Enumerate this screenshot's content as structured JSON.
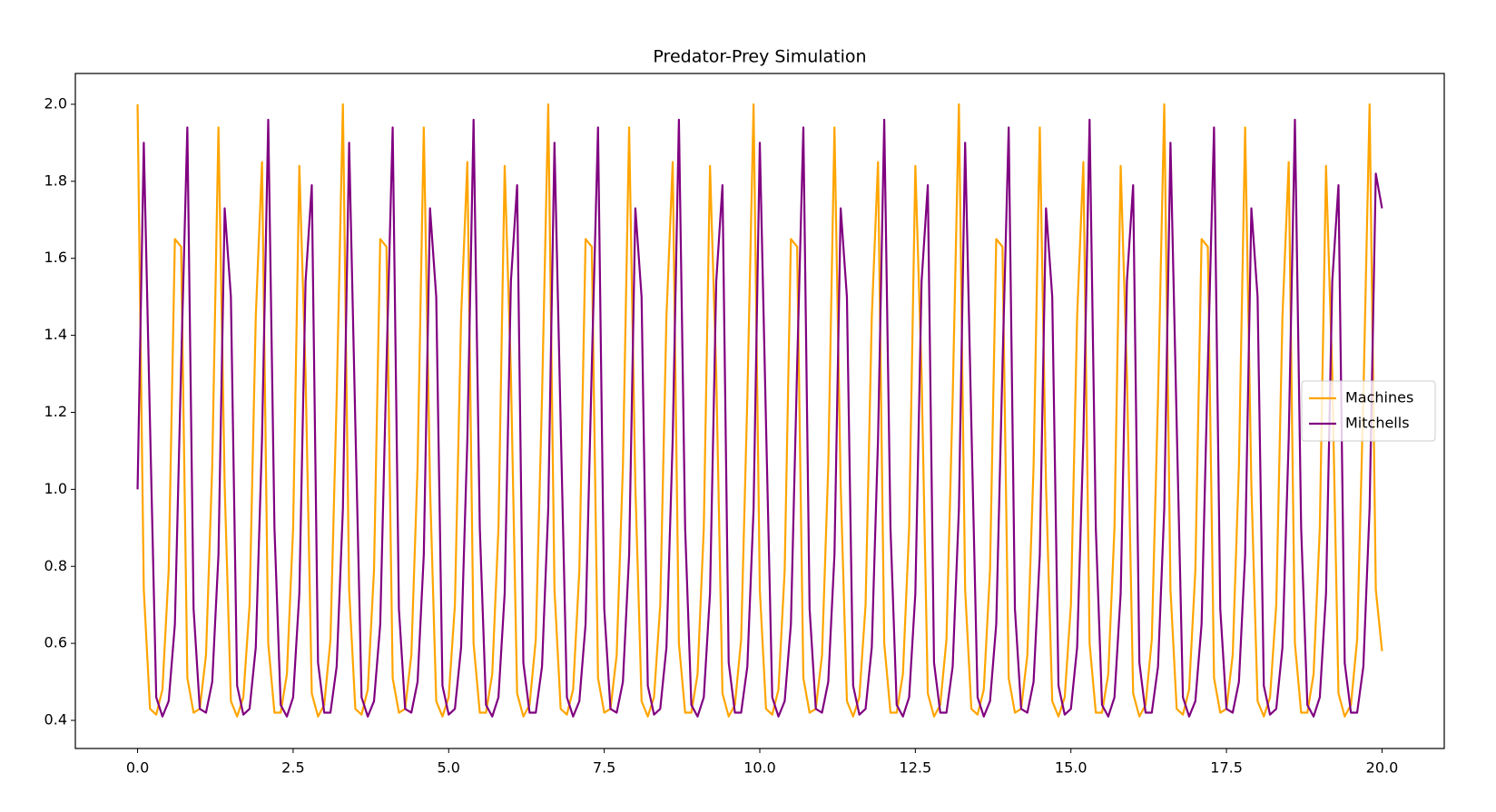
{
  "chart_data": {
    "type": "line",
    "title": "Predator-Prey Simulation",
    "x": [
      0,
      0.1,
      0.2,
      0.3,
      0.4,
      0.5,
      0.6,
      0.7,
      0.8,
      0.9,
      1,
      1.1,
      1.2,
      1.3,
      1.4,
      1.5,
      1.6,
      1.7,
      1.8,
      1.9,
      2,
      2.1,
      2.2,
      2.3,
      2.4,
      2.5,
      2.6,
      2.7,
      2.8,
      2.9,
      3,
      3.1,
      3.2,
      3.3,
      3.4,
      3.5,
      3.6,
      3.7,
      3.8,
      3.9,
      4,
      4.1,
      4.2,
      4.3,
      4.4,
      4.5,
      4.6,
      4.7,
      4.8,
      4.9,
      5,
      5.1,
      5.2,
      5.3,
      5.4,
      5.5,
      5.6,
      5.7,
      5.8,
      5.9,
      6,
      6.1,
      6.2,
      6.3,
      6.4,
      6.5,
      6.6,
      6.7,
      6.8,
      6.9,
      7,
      7.1,
      7.2,
      7.3,
      7.4,
      7.5,
      7.6,
      7.7,
      7.8,
      7.9,
      8,
      8.1,
      8.2,
      8.3,
      8.4,
      8.5,
      8.6,
      8.7,
      8.8,
      8.9,
      9,
      9.1,
      9.2,
      9.3,
      9.4,
      9.5,
      9.6,
      9.7,
      9.8,
      9.9,
      10,
      10.1,
      10.2,
      10.3,
      10.4,
      10.5,
      10.6,
      10.7,
      10.8,
      10.9,
      11,
      11.1,
      11.2,
      11.3,
      11.4,
      11.5,
      11.6,
      11.7,
      11.8,
      11.9,
      12,
      12.1,
      12.2,
      12.3,
      12.4,
      12.5,
      12.6,
      12.7,
      12.8,
      12.9,
      13,
      13.1,
      13.2,
      13.3,
      13.4,
      13.5,
      13.6,
      13.7,
      13.8,
      13.9,
      14,
      14.1,
      14.2,
      14.3,
      14.4,
      14.5,
      14.6,
      14.7,
      14.8,
      14.9,
      15,
      15.1,
      15.2,
      15.3,
      15.4,
      15.5,
      15.6,
      15.7,
      15.8,
      15.9,
      16,
      16.1,
      16.2,
      16.3,
      16.4,
      16.5,
      16.6,
      16.7,
      16.8,
      16.9,
      17,
      17.1,
      17.2,
      17.3,
      17.4,
      17.5,
      17.6,
      17.7,
      17.8,
      17.9,
      18,
      18.1,
      18.2,
      18.3,
      18.4,
      18.5,
      18.6,
      18.7,
      18.8,
      18.9,
      19,
      19.1,
      19.2,
      19.3,
      19.4,
      19.5,
      19.6,
      19.7,
      19.8,
      19.9,
      20
    ],
    "series": [
      {
        "name": "Machines",
        "color": "#ffa500",
        "values": [
          2.0,
          0.74,
          0.43,
          0.415,
          0.48,
          0.79,
          1.65,
          1.63,
          0.51,
          0.42,
          0.43,
          0.57,
          1.06,
          1.94,
          1.01,
          0.45,
          0.41,
          0.46,
          0.7,
          1.45,
          1.85,
          0.6,
          0.42,
          0.42,
          0.52,
          0.9,
          1.84,
          1.3,
          0.47,
          0.41,
          0.44,
          0.61,
          1.24,
          2.0,
          0.74,
          0.43,
          0.415,
          0.48,
          0.79,
          1.65,
          1.63,
          0.51,
          0.42,
          0.43,
          0.57,
          1.06,
          1.94,
          1.01,
          0.45,
          0.41,
          0.46,
          0.7,
          1.45,
          1.85,
          0.6,
          0.42,
          0.42,
          0.52,
          0.9,
          1.84,
          1.3,
          0.47,
          0.41,
          0.44,
          0.61,
          1.24,
          2.0,
          0.74,
          0.43,
          0.415,
          0.48,
          0.79,
          1.65,
          1.63,
          0.51,
          0.42,
          0.43,
          0.57,
          1.06,
          1.94,
          1.01,
          0.45,
          0.41,
          0.46,
          0.7,
          1.45,
          1.85,
          0.6,
          0.42,
          0.42,
          0.52,
          0.9,
          1.84,
          1.3,
          0.47,
          0.41,
          0.44,
          0.61,
          1.24,
          2.0,
          0.74,
          0.43,
          0.415,
          0.48,
          0.79,
          1.65,
          1.63,
          0.51,
          0.42,
          0.43,
          0.57,
          1.06,
          1.94,
          1.01,
          0.45,
          0.41,
          0.46,
          0.7,
          1.45,
          1.85,
          0.6,
          0.42,
          0.42,
          0.52,
          0.9,
          1.84,
          1.3,
          0.47,
          0.41,
          0.44,
          0.61,
          1.24,
          2.0,
          0.74,
          0.43,
          0.415,
          0.48,
          0.79,
          1.65,
          1.63,
          0.51,
          0.42,
          0.43,
          0.57,
          1.06,
          1.94,
          1.01,
          0.45,
          0.41,
          0.46,
          0.7,
          1.45,
          1.85,
          0.6,
          0.42,
          0.42,
          0.52,
          0.9,
          1.84,
          1.3,
          0.47,
          0.41,
          0.44,
          0.61,
          1.24,
          2.0,
          0.74,
          0.43,
          0.415,
          0.48,
          0.79,
          1.65,
          1.63,
          0.51,
          0.42,
          0.43,
          0.57,
          1.06,
          1.94,
          1.01,
          0.45,
          0.41,
          0.46,
          0.7,
          1.45,
          1.85,
          0.6,
          0.42,
          0.42,
          0.52,
          0.9,
          1.84,
          1.3,
          0.47,
          0.41,
          0.44,
          0.61,
          1.24,
          2.0,
          0.74,
          0.58
        ]
      },
      {
        "name": "Mitchells",
        "color": "#800080",
        "values": [
          1.0,
          1.9,
          1.17,
          0.46,
          0.41,
          0.45,
          0.65,
          1.32,
          1.94,
          0.69,
          0.43,
          0.42,
          0.5,
          0.83,
          1.73,
          1.5,
          0.49,
          0.415,
          0.43,
          0.59,
          1.13,
          1.96,
          0.9,
          0.44,
          0.41,
          0.46,
          0.73,
          1.54,
          1.79,
          0.55,
          0.42,
          0.42,
          0.54,
          0.95,
          1.9,
          1.17,
          0.46,
          0.41,
          0.45,
          0.65,
          1.32,
          1.94,
          0.69,
          0.43,
          0.42,
          0.5,
          0.83,
          1.73,
          1.5,
          0.49,
          0.415,
          0.43,
          0.59,
          1.13,
          1.96,
          0.9,
          0.44,
          0.41,
          0.46,
          0.73,
          1.54,
          1.79,
          0.55,
          0.42,
          0.42,
          0.54,
          0.95,
          1.9,
          1.17,
          0.46,
          0.41,
          0.45,
          0.65,
          1.32,
          1.94,
          0.69,
          0.43,
          0.42,
          0.5,
          0.83,
          1.73,
          1.5,
          0.49,
          0.415,
          0.43,
          0.59,
          1.13,
          1.96,
          0.9,
          0.44,
          0.41,
          0.46,
          0.73,
          1.54,
          1.79,
          0.55,
          0.42,
          0.42,
          0.54,
          0.95,
          1.9,
          1.17,
          0.46,
          0.41,
          0.45,
          0.65,
          1.32,
          1.94,
          0.69,
          0.43,
          0.42,
          0.5,
          0.83,
          1.73,
          1.5,
          0.49,
          0.415,
          0.43,
          0.59,
          1.13,
          1.96,
          0.9,
          0.44,
          0.41,
          0.46,
          0.73,
          1.54,
          1.79,
          0.55,
          0.42,
          0.42,
          0.54,
          0.95,
          1.9,
          1.17,
          0.46,
          0.41,
          0.45,
          0.65,
          1.32,
          1.94,
          0.69,
          0.43,
          0.42,
          0.5,
          0.83,
          1.73,
          1.5,
          0.49,
          0.415,
          0.43,
          0.59,
          1.13,
          1.96,
          0.9,
          0.44,
          0.41,
          0.46,
          0.73,
          1.54,
          1.79,
          0.55,
          0.42,
          0.42,
          0.54,
          0.95,
          1.9,
          1.17,
          0.46,
          0.41,
          0.45,
          0.65,
          1.32,
          1.94,
          0.69,
          0.43,
          0.42,
          0.5,
          0.83,
          1.73,
          1.5,
          0.49,
          0.415,
          0.43,
          0.59,
          1.13,
          1.96,
          0.9,
          0.44,
          0.41,
          0.46,
          0.73,
          1.54,
          1.79,
          0.55,
          0.42,
          0.42,
          0.54,
          0.95,
          1.82,
          1.73
        ]
      }
    ],
    "xlim": [
      -1,
      21
    ],
    "ylim": [
      0.327,
      2.08
    ],
    "xticks": [
      {
        "value": 0,
        "label": "0.0"
      },
      2.5,
      {
        "value": 5,
        "label": "5.0"
      },
      7.5,
      {
        "value": 10,
        "label": "10.0"
      },
      12.5,
      {
        "value": 15,
        "label": "15.0"
      },
      17.5,
      {
        "value": 20,
        "label": "20.0"
      }
    ],
    "yticks": [
      0.4,
      0.6,
      0.8,
      {
        "value": 1,
        "label": "1.0"
      },
      1.2,
      1.4,
      1.6,
      1.8,
      {
        "value": 2,
        "label": "2.0"
      }
    ],
    "legend": "center right",
    "grid": false
  }
}
